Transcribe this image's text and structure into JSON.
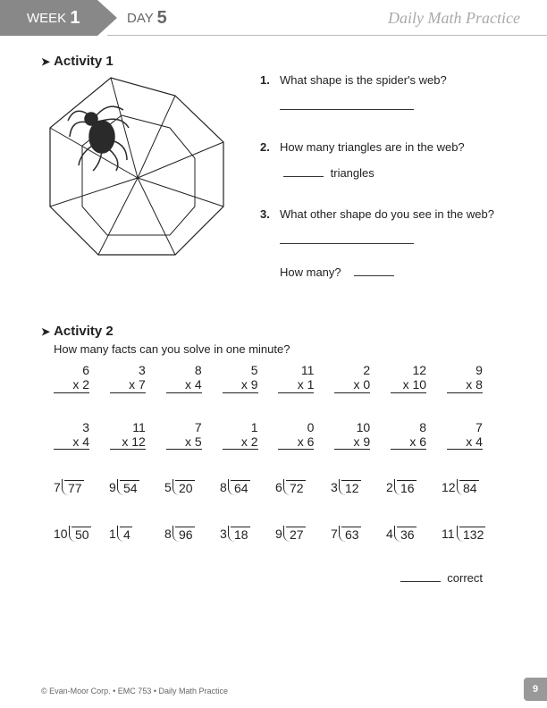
{
  "header": {
    "week_label": "WEEK",
    "week_num": "1",
    "day_label": "DAY",
    "day_num": "5",
    "title": "Daily Math Practice"
  },
  "activity1": {
    "title": "Activity 1",
    "web": {
      "type": "diagram",
      "outer_stroke": "#222222",
      "inner_stroke": "#222222",
      "stroke_width": 1,
      "background": "#ffffff",
      "spider_color": "#2a2a2a"
    },
    "questions": [
      {
        "num": "1.",
        "text": "What shape is the spider's web?"
      },
      {
        "num": "2.",
        "text": "How many triangles are in the web?",
        "suffix": "triangles"
      },
      {
        "num": "3.",
        "text": "What other shape do you see in the web?",
        "followup": "How many?"
      }
    ]
  },
  "activity2": {
    "title": "Activity 2",
    "prompt": "How many facts can you solve in one minute?",
    "mult_rows": [
      [
        {
          "a": "6",
          "b": "2"
        },
        {
          "a": "3",
          "b": "7"
        },
        {
          "a": "8",
          "b": "4"
        },
        {
          "a": "5",
          "b": "9"
        },
        {
          "a": "11",
          "b": "1"
        },
        {
          "a": "2",
          "b": "0"
        },
        {
          "a": "12",
          "b": "10"
        },
        {
          "a": "9",
          "b": "8"
        }
      ],
      [
        {
          "a": "3",
          "b": "4"
        },
        {
          "a": "11",
          "b": "12"
        },
        {
          "a": "7",
          "b": "5"
        },
        {
          "a": "1",
          "b": "2"
        },
        {
          "a": "0",
          "b": "6"
        },
        {
          "a": "10",
          "b": "9"
        },
        {
          "a": "8",
          "b": "6"
        },
        {
          "a": "7",
          "b": "4"
        }
      ]
    ],
    "div_rows": [
      [
        {
          "d": "7",
          "n": "77"
        },
        {
          "d": "9",
          "n": "54"
        },
        {
          "d": "5",
          "n": "20"
        },
        {
          "d": "8",
          "n": "64"
        },
        {
          "d": "6",
          "n": "72"
        },
        {
          "d": "3",
          "n": "12"
        },
        {
          "d": "2",
          "n": "16"
        },
        {
          "d": "12",
          "n": "84"
        }
      ],
      [
        {
          "d": "10",
          "n": "50"
        },
        {
          "d": "1",
          "n": "4"
        },
        {
          "d": "8",
          "n": "96"
        },
        {
          "d": "3",
          "n": "18"
        },
        {
          "d": "9",
          "n": "27"
        },
        {
          "d": "7",
          "n": "63"
        },
        {
          "d": "4",
          "n": "36"
        },
        {
          "d": "11",
          "n": "132"
        }
      ]
    ],
    "correct_label": "correct"
  },
  "footer": {
    "text": "© Evan-Moor Corp. • EMC 753 • Daily Math Practice",
    "page": "9"
  }
}
